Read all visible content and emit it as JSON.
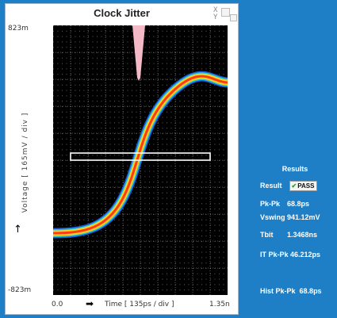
{
  "window": {
    "title": "Clock Jitter",
    "corner_top": "X",
    "corner_bottom": "Y"
  },
  "plot": {
    "y_top": "823m",
    "y_bottom": "-823m",
    "y_label": "Voltage  [ 165mV / div ]",
    "y_arrow": "↑",
    "x_start": "0.0",
    "x_end": "1.35n",
    "x_label": "Time  [ 135ps / div ]",
    "x_arrow": "➡"
  },
  "results": {
    "title": "Results",
    "result_label": "Result",
    "result_value": "PASS",
    "pkpk_label": "Pk-Pk",
    "pkpk_value": "68.8ps",
    "vswing_label": "Vswing",
    "vswing_value": "941.12mV",
    "tbit_label": "Tbit",
    "tbit_value": "1.3468ns",
    "itpkpk_label": "IT Pk-Pk",
    "itpkpk_value": "46.212ps",
    "histpkpk_label": "Hist Pk-Pk",
    "histpkpk_value": "68.8ps"
  },
  "colors": {
    "background": "#1f7fc6",
    "trace_outer": "#1a57d8",
    "trace_mid": "#ffd21a",
    "trace_core": "#ff3b17",
    "histogram": "#f4b9c7"
  }
}
